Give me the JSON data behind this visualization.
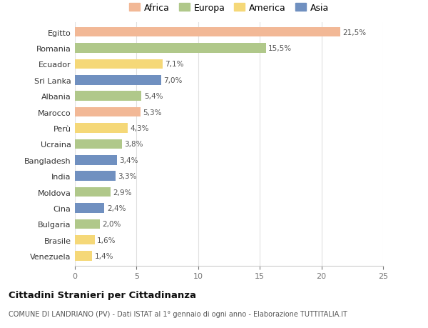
{
  "countries": [
    "Egitto",
    "Romania",
    "Ecuador",
    "Sri Lanka",
    "Albania",
    "Marocco",
    "Perù",
    "Ucraina",
    "Bangladesh",
    "India",
    "Moldova",
    "Cina",
    "Bulgaria",
    "Brasile",
    "Venezuela"
  ],
  "values": [
    21.5,
    15.5,
    7.1,
    7.0,
    5.4,
    5.3,
    4.3,
    3.8,
    3.4,
    3.3,
    2.9,
    2.4,
    2.0,
    1.6,
    1.4
  ],
  "labels": [
    "21,5%",
    "15,5%",
    "7,1%",
    "7,0%",
    "5,4%",
    "5,3%",
    "4,3%",
    "3,8%",
    "3,4%",
    "3,3%",
    "2,9%",
    "2,4%",
    "2,0%",
    "1,6%",
    "1,4%"
  ],
  "continents": [
    "Africa",
    "Europa",
    "America",
    "Asia",
    "Europa",
    "Africa",
    "America",
    "Europa",
    "Asia",
    "Asia",
    "Europa",
    "Asia",
    "Europa",
    "America",
    "America"
  ],
  "colors": {
    "Africa": "#F2B896",
    "Europa": "#B0C88A",
    "America": "#F5D878",
    "Asia": "#7090C0"
  },
  "legend_order": [
    "Africa",
    "Europa",
    "America",
    "Asia"
  ],
  "title": "Cittadini Stranieri per Cittadinanza",
  "subtitle": "COMUNE DI LANDRIANO (PV) - Dati ISTAT al 1° gennaio di ogni anno - Elaborazione TUTTITALIA.IT",
  "xlim": [
    0,
    25
  ],
  "xticks": [
    0,
    5,
    10,
    15,
    20,
    25
  ],
  "background_color": "#ffffff"
}
